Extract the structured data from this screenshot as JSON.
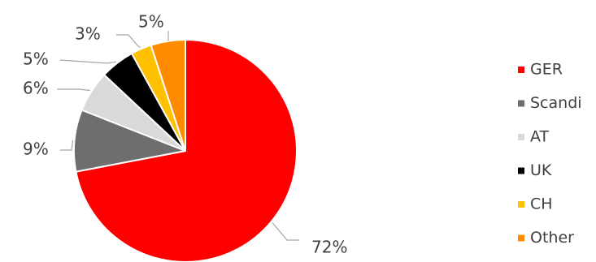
{
  "chart_data": {
    "type": "pie",
    "categories": [
      "GER",
      "Scandi",
      "AT",
      "UK",
      "CH",
      "Other"
    ],
    "values": [
      72,
      9,
      6,
      5,
      3,
      5
    ],
    "value_labels": [
      "72%",
      "9%",
      "6%",
      "5%",
      "3%",
      "5%"
    ],
    "colors": [
      "#ff0000",
      "#6e6e6e",
      "#d9d9d9",
      "#000000",
      "#ffc000",
      "#ff8c00"
    ],
    "legend_position": "right",
    "slice_border_color": "#ffffff",
    "leader_line_color": "#a6a6a6"
  }
}
